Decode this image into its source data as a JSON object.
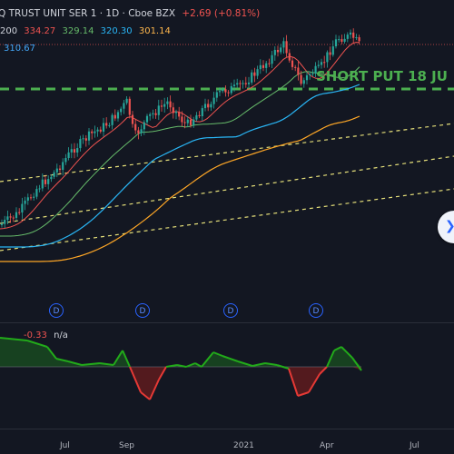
{
  "header": {
    "title": "Q TRUST UNIT SER 1 · 1D · Cboe BZX",
    "change": "+2.69 (+0.81%)",
    "ma_label": "200",
    "ma_values": [
      "334.27",
      "329.14",
      "320.30",
      "301.14"
    ],
    "ma_colors": [
      "#ef5350",
      "#66bb6a",
      "#29b6f6",
      "#ffb74d"
    ],
    "ma_extra": "310.67"
  },
  "annotation": {
    "text": "SHORT PUT 18 JU"
  },
  "indicator": {
    "value": "-0.33",
    "na": "n/a"
  },
  "dividend_badge": "D",
  "x_axis": [
    "Jul",
    "Sep",
    "2021",
    "Apr",
    "Jul"
  ],
  "scroll_icon": "double-chevron-right-icon",
  "colors": {
    "bg": "#131722",
    "up": "#26a69a",
    "down": "#ef5350",
    "osc_pos": "#22ab1a",
    "osc_neg": "#e53935"
  }
}
